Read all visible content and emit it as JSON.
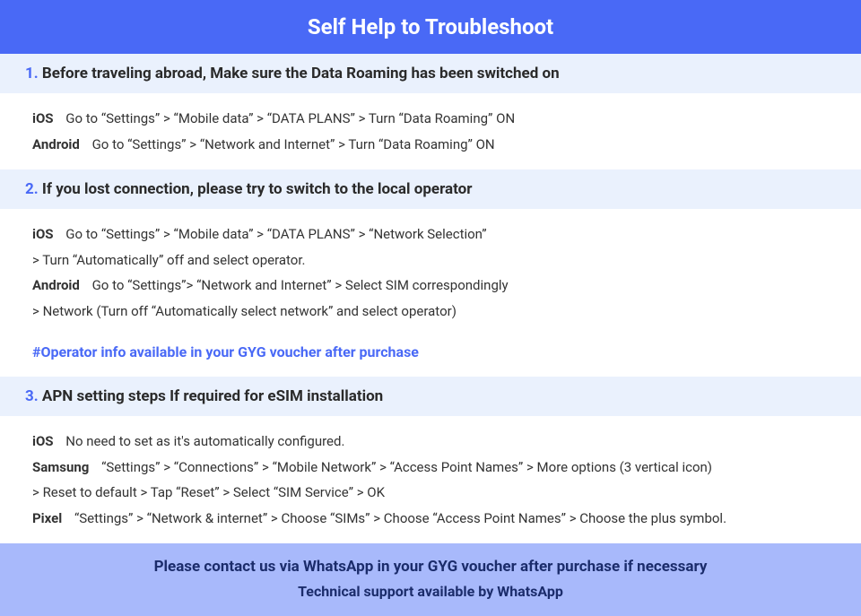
{
  "colors": {
    "header_bg": "#4969f6",
    "header_text": "#ffffff",
    "section_bg": "#eaf1fd",
    "accent": "#4969f6",
    "body_text": "#333333",
    "footer_bg": "#a8b9fb",
    "footer_text": "#1b2c6b"
  },
  "header": {
    "title": "Self Help to Troubleshoot"
  },
  "sections": [
    {
      "num": "1.",
      "bold": "Before traveling abroad,",
      "rest": "Make sure the Data Roaming has been switched on",
      "rows": [
        {
          "platform": "iOS",
          "text": "Go to “Settings” > “Mobile data” > “DATA PLANS” > Turn “Data Roaming” ON"
        },
        {
          "platform": "Android",
          "text": "Go to “Settings” > “Network and Internet” > Turn “Data Roaming” ON"
        }
      ]
    },
    {
      "num": "2.",
      "bold": "If you lost connection, please try to switch to the local operator",
      "rest": "",
      "rows": [
        {
          "platform": "iOS",
          "text": "Go to “Settings” > “Mobile data” > “DATA PLANS” > “Network Selection”",
          "cont": "> Turn “Automatically” off and select operator."
        },
        {
          "platform": "Android",
          "text": "Go to “Settings”>  “Network and Internet” > Select SIM correspondingly",
          "cont": "> Network (Turn off “Automatically select network” and select operator)"
        }
      ],
      "note": "#Operator info available in your GYG voucher after purchase"
    },
    {
      "num": "3.",
      "bold": "APN setting steps If required for eSIM installation",
      "rest": "",
      "rows": [
        {
          "platform": "iOS",
          "text": "No need to set as it's automatically configured."
        },
        {
          "platform": "Samsung",
          "text": "“Settings” > “Connections” > “Mobile Network” > “Access Point Names” > More options (3 vertical icon)",
          "cont": "> Reset to default > Tap “Reset” > Select “SIM Service” > OK"
        },
        {
          "platform": "Pixel",
          "text": "“Settings” > “Network & internet” > Choose “SIMs” > Choose “Access Point Names” > Choose the plus symbol."
        }
      ]
    }
  ],
  "footer": {
    "line1": "Please contact us via WhatsApp  in your GYG voucher after purchase if necessary",
    "line2": "Technical support available by WhatsApp"
  }
}
